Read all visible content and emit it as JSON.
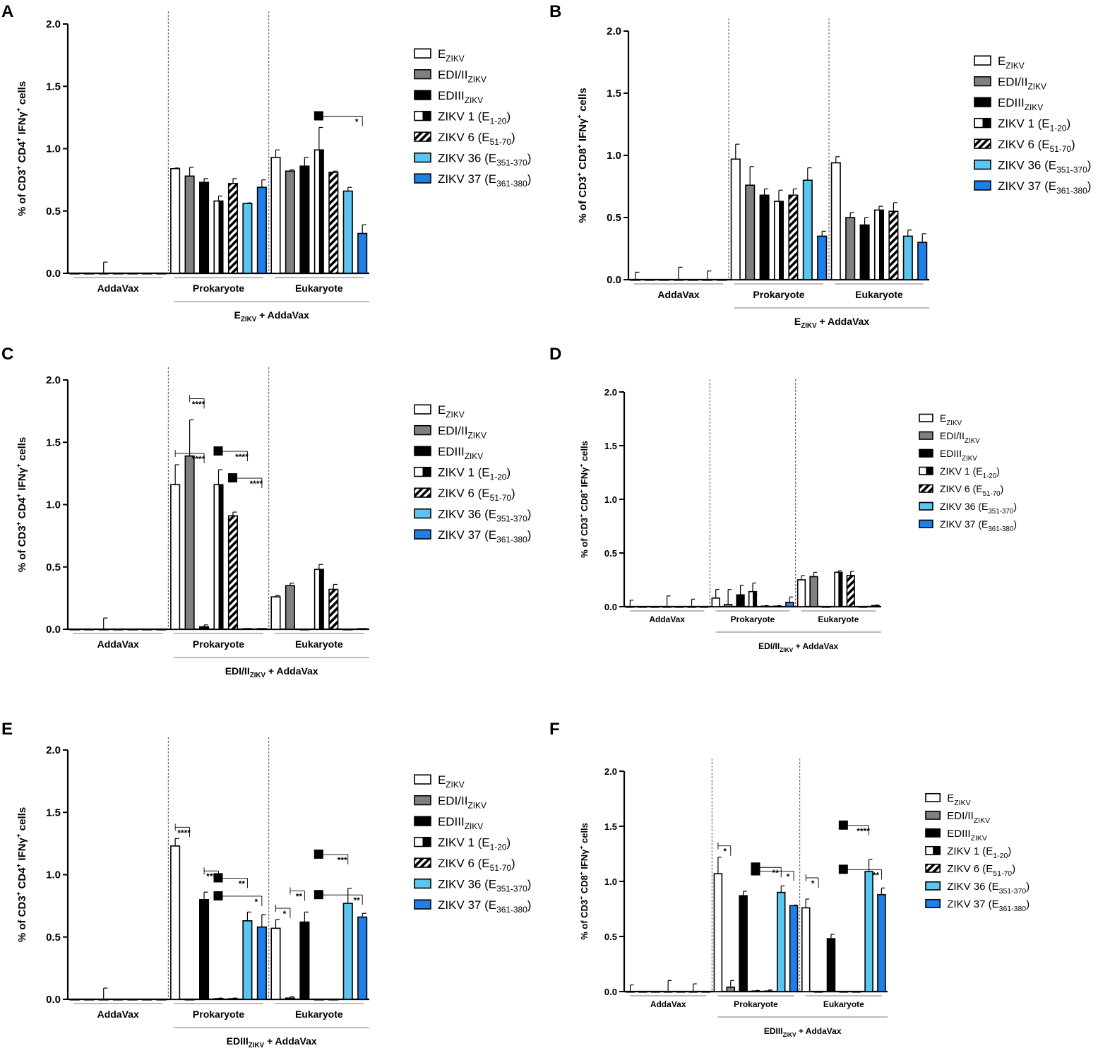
{
  "figure": {
    "legend_items": [
      {
        "base": "E",
        "sub": "ZIKV",
        "pattern": "white"
      },
      {
        "base": "EDI/II",
        "sub": "ZIKV",
        "pattern": "gray"
      },
      {
        "base": "EDIII",
        "sub": "ZIKV",
        "pattern": "black"
      },
      {
        "base": "ZIKV 1 (E",
        "sub": "1-20",
        "after": ")",
        "pattern": "vstripe"
      },
      {
        "base": "ZIKV 6 (E",
        "sub": "51-70",
        "after": ")",
        "pattern": "diag"
      },
      {
        "base": "ZIKV 36 (E",
        "sub": "351-370",
        "after": ")",
        "pattern": "lightblue"
      },
      {
        "base": "ZIKV 37 (E",
        "sub": "361-380",
        "after": ")",
        "pattern": "blue"
      }
    ],
    "colors": {
      "gray": "#808080",
      "black": "#000000",
      "lightblue": "#5BC4F1",
      "blue": "#1F7FE8",
      "dash": "#555555"
    }
  },
  "chart_data": [
    {
      "panel": "A",
      "type": "bar",
      "ylabel_cell": "CD4",
      "yticks": [
        "0.0",
        "0.5",
        "1.0",
        "1.5",
        "2.0"
      ],
      "ylim": [
        0,
        2
      ],
      "groups": [
        "AddaVax",
        "Prokaryote",
        "Eukaryote"
      ],
      "immunogen": {
        "base": "E",
        "sub": "ZIKV",
        "after": " + AddaVax"
      },
      "series": [
        "E",
        "EDI/II",
        "EDIII",
        "ZIKV 1",
        "ZIKV 6",
        "ZIKV 36",
        "ZIKV 37"
      ],
      "values": [
        [
          0,
          0,
          0,
          0,
          0,
          0,
          0
        ],
        [
          0.84,
          0.78,
          0.73,
          0.58,
          0.72,
          0.56,
          0.69
        ],
        [
          0.93,
          0.82,
          0.86,
          0.99,
          0.81,
          0.66,
          0.32
        ]
      ],
      "errors": [
        [
          0,
          0,
          0.09,
          0,
          0,
          0,
          0
        ],
        [
          0.005,
          0.07,
          0.03,
          0.04,
          0.04,
          0.005,
          0.06
        ],
        [
          0.06,
          0.01,
          0.07,
          0.18,
          0.01,
          0.03,
          0.07
        ]
      ],
      "annotations": [
        {
          "group": 2,
          "from": 3,
          "to": 6,
          "label": "*",
          "square": true
        }
      ]
    },
    {
      "panel": "B",
      "type": "bar",
      "ylabel_cell": "CD8",
      "yticks": [
        "0.0",
        "0.5",
        "1.0",
        "1.5",
        "2.0"
      ],
      "ylim": [
        0,
        2
      ],
      "groups": [
        "AddaVax",
        "Prokaryote",
        "Eukaryote"
      ],
      "immunogen": {
        "base": "E",
        "sub": "ZIKV",
        "after": " + AddaVax"
      },
      "series": [
        "E",
        "EDI/II",
        "EDIII",
        "ZIKV 1",
        "ZIKV 6",
        "ZIKV 36",
        "ZIKV 37"
      ],
      "values": [
        [
          0,
          0,
          0,
          0,
          0,
          0,
          0
        ],
        [
          0.97,
          0.76,
          0.68,
          0.63,
          0.68,
          0.8,
          0.35
        ],
        [
          0.94,
          0.5,
          0.44,
          0.56,
          0.55,
          0.35,
          0.3
        ]
      ],
      "errors": [
        [
          0.06,
          0,
          0,
          0.1,
          0,
          0.07,
          0
        ],
        [
          0.12,
          0.15,
          0.05,
          0.09,
          0.05,
          0.1,
          0.04
        ],
        [
          0.05,
          0.04,
          0.06,
          0.03,
          0.07,
          0.05,
          0.07
        ]
      ],
      "annotations": []
    },
    {
      "panel": "C",
      "type": "bar",
      "ylabel_cell": "CD4",
      "yticks": [
        "0.0",
        "0.5",
        "1.0",
        "1.5",
        "2.0"
      ],
      "ylim": [
        0,
        2
      ],
      "groups": [
        "AddaVax",
        "Prokaryote",
        "Eukaryote"
      ],
      "immunogen": {
        "base": "EDI/II",
        "sub": "ZIKV",
        "after": " + AddaVax"
      },
      "series": [
        "E",
        "EDI/II",
        "EDIII",
        "ZIKV 1",
        "ZIKV 6",
        "ZIKV 36",
        "ZIKV 37"
      ],
      "values": [
        [
          0,
          0,
          0,
          0,
          0,
          0,
          0
        ],
        [
          1.16,
          1.39,
          0.02,
          1.16,
          0.91,
          0.005,
          0.005
        ],
        [
          0.26,
          0.35,
          0,
          0.48,
          0.32,
          0,
          0.005
        ]
      ],
      "errors": [
        [
          0,
          0,
          0.09,
          0,
          0,
          0,
          0
        ],
        [
          0.16,
          0.29,
          0.015,
          0.12,
          0.03,
          0,
          0
        ],
        [
          0.01,
          0.02,
          0,
          0.04,
          0.04,
          0,
          0
        ]
      ],
      "annotations": [
        {
          "group": 1,
          "from": 0,
          "to": 2,
          "label": "****",
          "square": false
        },
        {
          "group": 1,
          "from": 1,
          "to": 2,
          "label": "****",
          "square": false
        },
        {
          "group": 1,
          "from": 3,
          "to": 5,
          "label": "****",
          "square": true,
          "vertical": true
        },
        {
          "group": 1,
          "from": 4,
          "to": 6,
          "label": "****",
          "square": true,
          "vertical": true
        }
      ]
    },
    {
      "panel": "D",
      "type": "bar",
      "ylabel_cell": "CD8",
      "yticks": [
        "0.0",
        "0.5",
        "1.0",
        "1.5",
        "2.0"
      ],
      "ylim": [
        0,
        2
      ],
      "groups": [
        "AddaVax",
        "Prokaryote",
        "Eukaryote"
      ],
      "immunogen": {
        "base": "EDI/II",
        "sub": "ZIKV",
        "after": " + AddaVax"
      },
      "series": [
        "E",
        "EDI/II",
        "EDIII",
        "ZIKV 1",
        "ZIKV 6",
        "ZIKV 36",
        "ZIKV 37"
      ],
      "values": [
        [
          0,
          0,
          0,
          0,
          0,
          0,
          0
        ],
        [
          0.08,
          0.02,
          0.11,
          0.14,
          0.005,
          0.005,
          0.04
        ],
        [
          0.25,
          0.28,
          0,
          0.32,
          0.29,
          0,
          0.01
        ]
      ],
      "errors": [
        [
          0.06,
          0,
          0,
          0.1,
          0,
          0.07,
          0
        ],
        [
          0.08,
          0.14,
          0.09,
          0.08,
          0.005,
          0.005,
          0.05
        ],
        [
          0.04,
          0.04,
          0,
          0.015,
          0.04,
          0,
          0.005
        ]
      ],
      "annotations": []
    },
    {
      "panel": "E",
      "type": "bar",
      "ylabel_cell": "CD4",
      "yticks": [
        "0.0",
        "0.5",
        "1.0",
        "1.5",
        "2.0"
      ],
      "ylim": [
        0,
        2
      ],
      "groups": [
        "AddaVax",
        "Prokaryote",
        "Eukaryote"
      ],
      "immunogen": {
        "base": "EDIII",
        "sub": "ZIKV",
        "after": " + AddaVax"
      },
      "series": [
        "E",
        "EDI/II",
        "EDIII",
        "ZIKV 1",
        "ZIKV 6",
        "ZIKV 36",
        "ZIKV 37"
      ],
      "values": [
        [
          0,
          0,
          0,
          0,
          0,
          0,
          0
        ],
        [
          1.23,
          0,
          0.8,
          0.005,
          0.005,
          0.63,
          0.58
        ],
        [
          0.57,
          0.01,
          0.62,
          0,
          0,
          0.77,
          0.66
        ]
      ],
      "errors": [
        [
          0,
          0,
          0.09,
          0,
          0,
          0,
          0
        ],
        [
          0.06,
          0,
          0.06,
          0.005,
          0.005,
          0.07,
          0.1
        ],
        [
          0.07,
          0.01,
          0.08,
          0,
          0,
          0.12,
          0.03
        ]
      ],
      "annotations": [
        {
          "group": 1,
          "from": 0,
          "to": 1,
          "label": "****",
          "square": false
        },
        {
          "group": 1,
          "from": 2,
          "to": 3,
          "label": "****",
          "square": false
        },
        {
          "group": 1,
          "from": 3,
          "to": 6,
          "label": "*",
          "square": true,
          "vertical": true
        },
        {
          "group": 1,
          "from": 3,
          "to": 5,
          "label": "**",
          "square": true,
          "vertical": true
        },
        {
          "group": 2,
          "from": 0,
          "to": 1,
          "label": "*",
          "square": false
        },
        {
          "group": 2,
          "from": 1,
          "to": 2,
          "label": "**",
          "square": false
        },
        {
          "group": 2,
          "from": 3,
          "to": 6,
          "label": "**",
          "square": true,
          "vertical": true
        },
        {
          "group": 2,
          "from": 3,
          "to": 5,
          "label": "***",
          "square": true,
          "vertical": true
        }
      ]
    },
    {
      "panel": "F",
      "type": "bar",
      "ylabel_cell": "CD8",
      "yticks": [
        "0.0",
        "0.5",
        "1.0",
        "1.5",
        "2.0"
      ],
      "ylim": [
        0,
        2
      ],
      "groups": [
        "AddaVax",
        "Prokaryote",
        "Eukaryote"
      ],
      "immunogen": {
        "base": "EDIII",
        "sub": "ZIKV",
        "after": " + AddaVax"
      },
      "series": [
        "E",
        "EDI/II",
        "EDIII",
        "ZIKV 1",
        "ZIKV 6",
        "ZIKV 36",
        "ZIKV 37"
      ],
      "values": [
        [
          0,
          0,
          0,
          0,
          0,
          0,
          0
        ],
        [
          1.07,
          0.04,
          0.87,
          0.005,
          0.005,
          0.9,
          0.78
        ],
        [
          0.76,
          0,
          0.48,
          0,
          0,
          1.09,
          0.88
        ]
      ],
      "errors": [
        [
          0.06,
          0,
          0,
          0.1,
          0,
          0.07,
          0
        ],
        [
          0.15,
          0.06,
          0.04,
          0.005,
          0.01,
          0.06,
          0.005
        ],
        [
          0.08,
          0,
          0.04,
          0,
          0,
          0.11,
          0.06
        ]
      ],
      "annotations": [
        {
          "group": 1,
          "from": 0,
          "to": 1,
          "label": "*",
          "square": false
        },
        {
          "group": 1,
          "from": 3,
          "to": 6,
          "label": "*",
          "square": true,
          "vertical": true
        },
        {
          "group": 1,
          "from": 3,
          "to": 5,
          "label": "**",
          "square": true,
          "vertical": true
        },
        {
          "group": 2,
          "from": 0,
          "to": 1,
          "label": "*",
          "square": false
        },
        {
          "group": 2,
          "from": 3,
          "to": 6,
          "label": "**",
          "square": true,
          "vertical": true
        },
        {
          "group": 2,
          "from": 3,
          "to": 5,
          "label": "****",
          "square": true,
          "vertical": true
        }
      ]
    }
  ]
}
